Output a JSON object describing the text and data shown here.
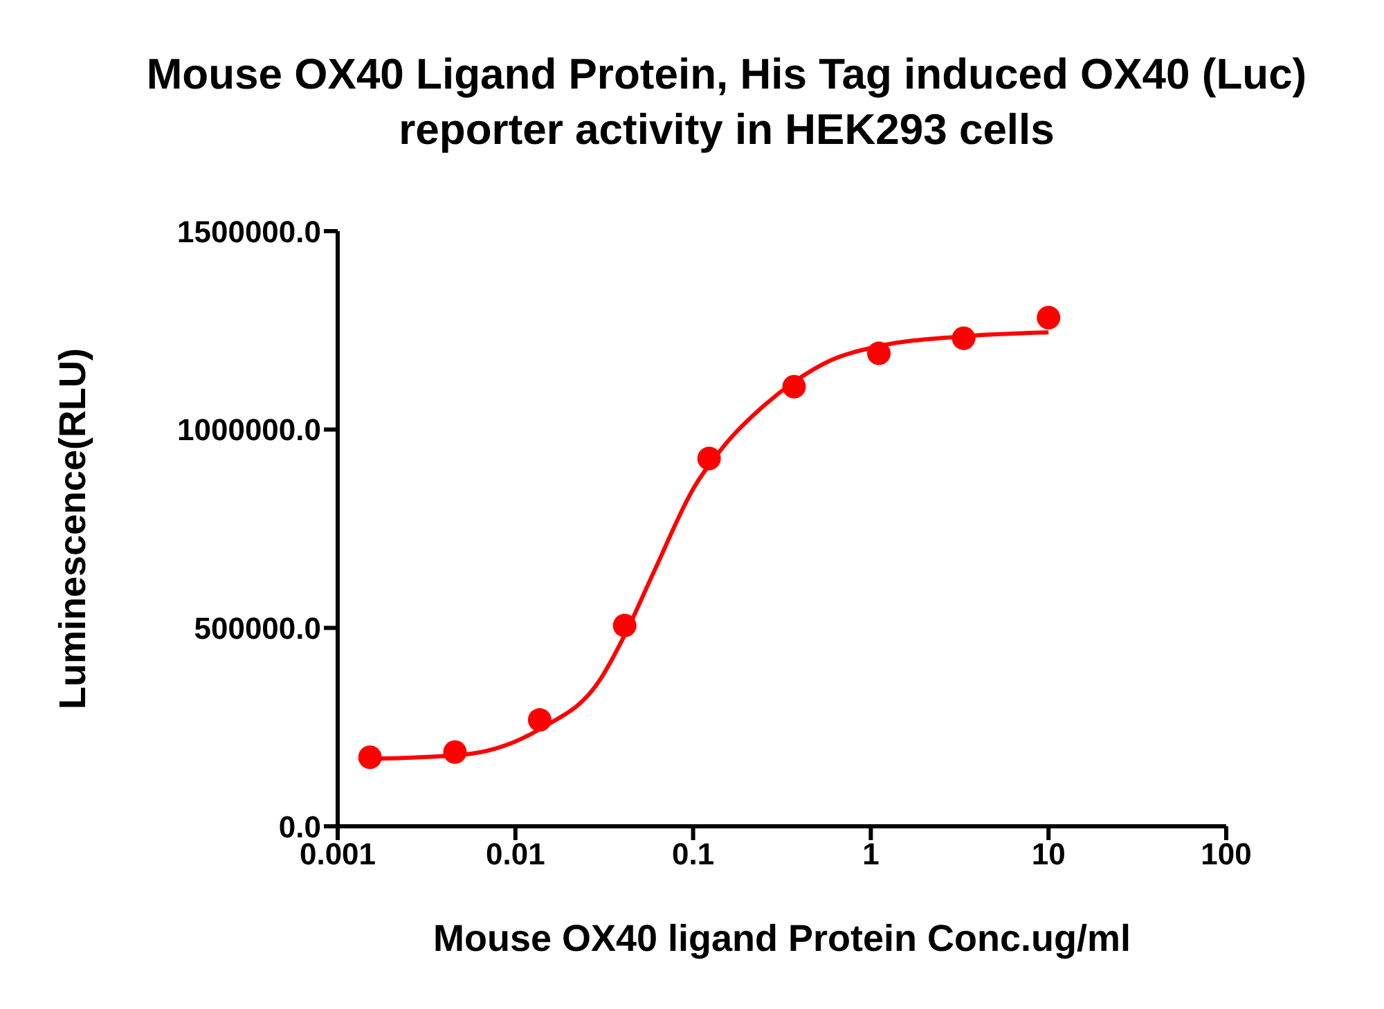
{
  "chart_data": {
    "type": "scatter",
    "title": "Mouse OX40 Ligand Protein, His Tag induced OX40 (Luc) reporter activity in HEK293 cells",
    "xlabel": "Mouse OX40 ligand Protein Conc.ug/ml",
    "ylabel": "Luminescence(RLU)",
    "log": "x",
    "xlim": [
      0.001,
      100
    ],
    "xticks": [
      0.001,
      0.01,
      0.1,
      1,
      10,
      100
    ],
    "ylim": [
      0,
      1500000
    ],
    "yticks": [
      {
        "value": 0,
        "label": "0.0"
      },
      {
        "value": 500000,
        "label": "500000.0"
      },
      {
        "value": 1000000,
        "label": "1000000.0"
      },
      {
        "value": 1500000,
        "label": "1500000.0"
      }
    ],
    "series": [
      {
        "color": "#ff0000",
        "marker": "circle",
        "x": [
          0.00152,
          0.00457,
          0.0137,
          0.0412,
          0.123,
          0.37,
          1.11,
          3.33,
          10
        ],
        "values": [
          174000,
          187000,
          268000,
          506000,
          927000,
          1108000,
          1192000,
          1230000,
          1282000
        ]
      },
      {
        "type": "line",
        "color": "#ff0000",
        "marker": "none",
        "x": [
          0.00152,
          0.005,
          0.0137,
          0.03,
          0.041,
          0.06,
          0.1,
          0.15,
          0.25,
          0.37,
          0.6,
          1.11,
          3.33,
          10
        ],
        "values": [
          170000,
          180000,
          245000,
          370000,
          480000,
          640000,
          850000,
          960000,
          1060000,
          1120000,
          1175000,
          1210000,
          1235000,
          1245000
        ]
      }
    ]
  }
}
